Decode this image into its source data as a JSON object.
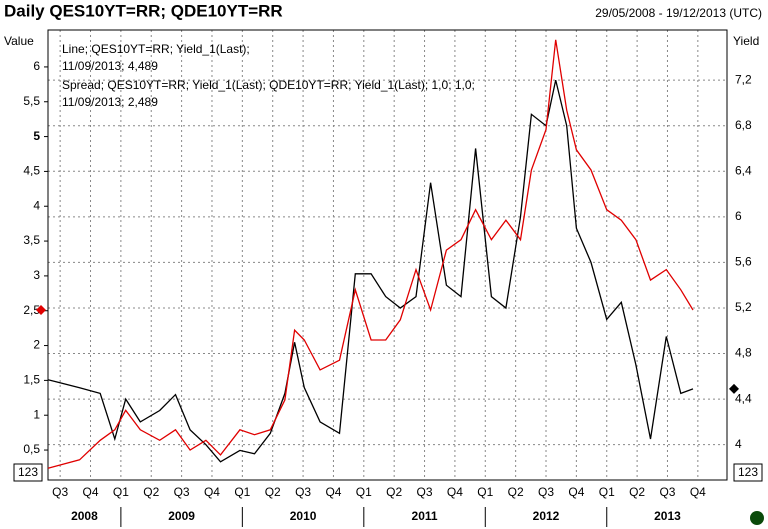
{
  "chart_data": {
    "type": "line",
    "title": "Daily QES10YT=RR; QDE10YT=RR",
    "date_range": "29/05/2008 - 19/12/2013 (UTC)",
    "y_label": "Value",
    "y2_label": "Yield",
    "left_scale_button": "123",
    "right_scale_button": "123",
    "x": [
      2008.4,
      2008.66,
      2008.83,
      2008.95,
      2009.04,
      2009.16,
      2009.32,
      2009.45,
      2009.57,
      2009.7,
      2009.82,
      2009.98,
      2010.1,
      2010.23,
      2010.35,
      2010.43,
      2010.51,
      2010.64,
      2010.8,
      2010.93,
      2011.06,
      2011.18,
      2011.3,
      2011.43,
      2011.55,
      2011.68,
      2011.8,
      2011.92,
      2012.05,
      2012.17,
      2012.29,
      2012.38,
      2012.5,
      2012.58,
      2012.67,
      2012.75,
      2012.87,
      2013.0,
      2013.12,
      2013.24,
      2013.36,
      2013.49,
      2013.61,
      2013.71
    ],
    "series": [
      {
        "name": "Line; QES10YT=RR; Yield_1(Last);",
        "legend_value": "11/09/2013; 4,489",
        "color": "#000000",
        "axis": "y2",
        "values": [
          4.57,
          4.5,
          4.45,
          4.05,
          4.4,
          4.2,
          4.3,
          4.44,
          4.13,
          4.0,
          3.85,
          3.95,
          3.92,
          4.1,
          4.45,
          4.9,
          4.5,
          4.2,
          4.1,
          5.5,
          5.5,
          5.3,
          5.2,
          5.3,
          6.3,
          5.4,
          5.3,
          6.6,
          5.3,
          5.2,
          6.0,
          6.9,
          6.8,
          7.2,
          6.8,
          5.9,
          5.6,
          5.1,
          5.25,
          4.7,
          4.05,
          4.95,
          4.45,
          4.49
        ]
      },
      {
        "name": "Spread; QES10YT=RR; Yield_1(Last); QDE10YT=RR; Yield_1(Last);  1,0; 1,0;",
        "legend_value": "11/09/2013; 2,489",
        "color": "#e00000",
        "axis": "y",
        "values": [
          0.24,
          0.36,
          0.64,
          0.79,
          1.07,
          0.79,
          0.64,
          0.79,
          0.5,
          0.64,
          0.43,
          0.79,
          0.72,
          0.79,
          1.22,
          2.22,
          2.08,
          1.65,
          1.79,
          2.8,
          2.08,
          2.08,
          2.37,
          3.09,
          2.51,
          3.37,
          3.52,
          3.95,
          3.52,
          3.8,
          3.52,
          4.52,
          5.1,
          6.39,
          5.38,
          4.81,
          4.52,
          3.95,
          3.8,
          3.52,
          2.94,
          3.09,
          2.8,
          2.51
        ]
      }
    ],
    "xlim": [
      2008.4,
      2013.99
    ],
    "xticks": [
      {
        "value": 2008.5,
        "label": "Q3"
      },
      {
        "value": 2008.75,
        "label": "Q4"
      },
      {
        "value": 2009.0,
        "label": "Q1"
      },
      {
        "value": 2009.25,
        "label": "Q2"
      },
      {
        "value": 2009.5,
        "label": "Q3"
      },
      {
        "value": 2009.75,
        "label": "Q4"
      },
      {
        "value": 2010.0,
        "label": "Q1"
      },
      {
        "value": 2010.25,
        "label": "Q2"
      },
      {
        "value": 2010.5,
        "label": "Q3"
      },
      {
        "value": 2010.75,
        "label": "Q4"
      },
      {
        "value": 2011.0,
        "label": "Q1"
      },
      {
        "value": 2011.25,
        "label": "Q2"
      },
      {
        "value": 2011.5,
        "label": "Q3"
      },
      {
        "value": 2011.75,
        "label": "Q4"
      },
      {
        "value": 2012.0,
        "label": "Q1"
      },
      {
        "value": 2012.25,
        "label": "Q2"
      },
      {
        "value": 2012.5,
        "label": "Q3"
      },
      {
        "value": 2012.75,
        "label": "Q4"
      },
      {
        "value": 2013.0,
        "label": "Q1"
      },
      {
        "value": 2013.25,
        "label": "Q2"
      },
      {
        "value": 2013.5,
        "label": "Q3"
      },
      {
        "value": 2013.75,
        "label": "Q4"
      }
    ],
    "year_labels": [
      {
        "value": 2008.7,
        "label": "2008"
      },
      {
        "value": 2009.5,
        "label": "2009"
      },
      {
        "value": 2010.5,
        "label": "2010"
      },
      {
        "value": 2011.5,
        "label": "2011"
      },
      {
        "value": 2012.5,
        "label": "2012"
      },
      {
        "value": 2013.5,
        "label": "2013"
      }
    ],
    "ylim": [
      0.07,
      6.53
    ],
    "yticks": [
      {
        "value": 0.5,
        "label": "0,5"
      },
      1,
      {
        "value": 1.5,
        "label": "1,5"
      },
      2,
      {
        "value": 2.5,
        "label": "2,5"
      },
      3,
      {
        "value": 3.5,
        "label": "3,5"
      },
      4,
      {
        "value": 4.5,
        "label": "4,5"
      },
      5,
      {
        "value": 5.5,
        "label": "5,5"
      },
      6
    ],
    "y2lim": [
      3.69,
      7.64
    ],
    "y2ticks": [
      4,
      {
        "value": 4.4,
        "label": "4,4"
      },
      {
        "value": 4.8,
        "label": "4,8"
      },
      {
        "value": 5.2,
        "label": "5,2"
      },
      {
        "value": 5.6,
        "label": "5,6"
      },
      6,
      {
        "value": 6.4,
        "label": "6,4"
      },
      {
        "value": 6.8,
        "label": "6,8"
      },
      {
        "value": 7.2,
        "label": "7,2"
      }
    ],
    "grid": true
  }
}
